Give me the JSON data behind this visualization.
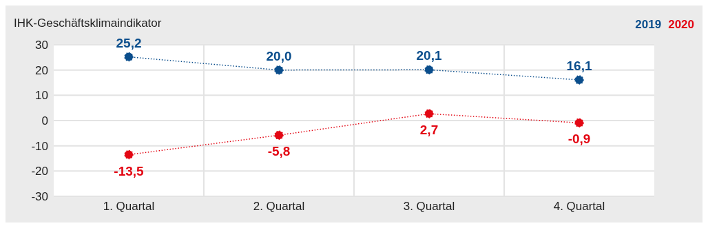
{
  "chart_data": {
    "type": "line",
    "title": "IHK-Geschäftsklimaindikator",
    "categories": [
      "1. Quartal",
      "2. Quartal",
      "3. Quartal",
      "4. Quartal"
    ],
    "series": [
      {
        "name": "2019",
        "color": "#0b4e8c",
        "values": [
          25.2,
          20.0,
          20.1,
          16.1
        ],
        "value_labels": [
          "25,2",
          "20,0",
          "20,1",
          "16,1"
        ]
      },
      {
        "name": "2020",
        "color": "#e30613",
        "values": [
          -13.5,
          -5.8,
          2.7,
          -0.9
        ],
        "value_labels": [
          "-13,5",
          "-5,8",
          "2,7",
          "-0,9"
        ]
      }
    ],
    "ylim": [
      -30,
      30
    ],
    "yticks": [
      -30,
      -20,
      -10,
      0,
      10,
      20,
      30
    ],
    "grid": true,
    "legend": "top right",
    "marker": "circle",
    "line_style": "dotted"
  }
}
